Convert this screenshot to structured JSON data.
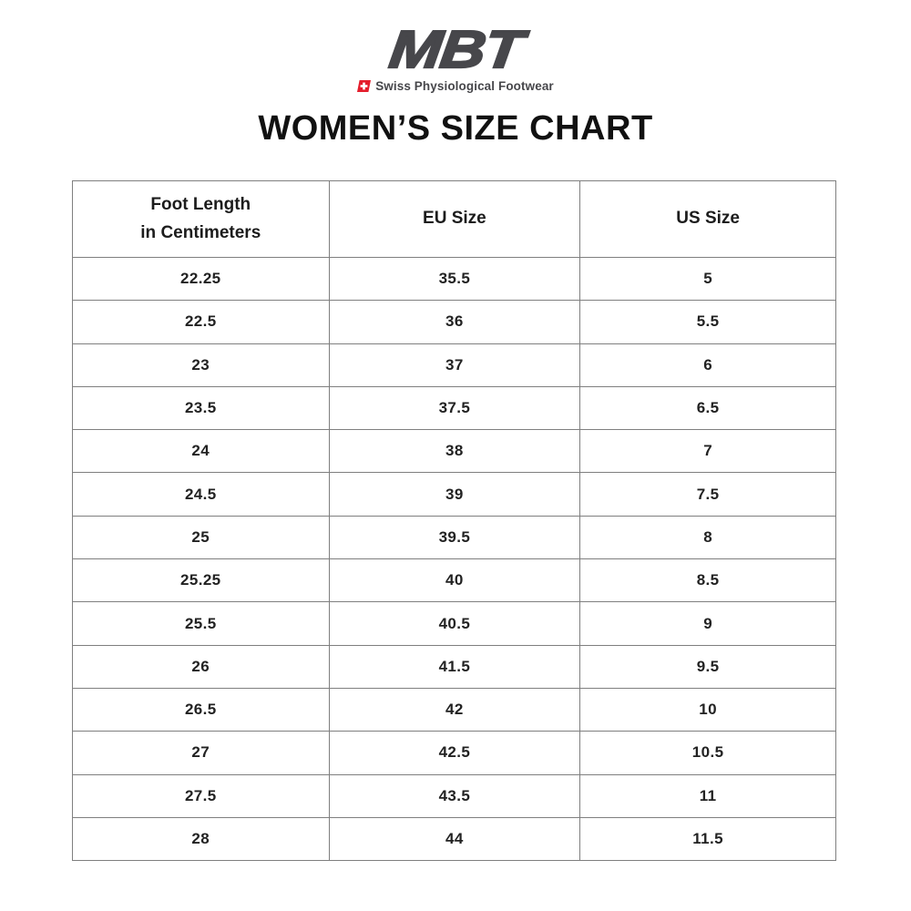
{
  "logo": {
    "brand": "MBT",
    "tagline": "Swiss Physiological Footwear"
  },
  "title": "WOMEN’S SIZE CHART",
  "colors": {
    "brand_gray": "#47474b",
    "swiss_red": "#e41e2d",
    "table_border": "#7f7f7f"
  },
  "table": {
    "columns": [
      {
        "label_lines": [
          "Foot Length",
          "in Centimeters"
        ]
      },
      {
        "label_lines": [
          "EU Size"
        ]
      },
      {
        "label_lines": [
          "US Size"
        ]
      }
    ],
    "column_keys": [
      "foot-length-cm",
      "eu-size",
      "us-size"
    ],
    "rows": [
      [
        "22.25",
        "35.5",
        "5"
      ],
      [
        "22.5",
        "36",
        "5.5"
      ],
      [
        "23",
        "37",
        "6"
      ],
      [
        "23.5",
        "37.5",
        "6.5"
      ],
      [
        "24",
        "38",
        "7"
      ],
      [
        "24.5",
        "39",
        "7.5"
      ],
      [
        "25",
        "39.5",
        "8"
      ],
      [
        "25.25",
        "40",
        "8.5"
      ],
      [
        "25.5",
        "40.5",
        "9"
      ],
      [
        "26",
        "41.5",
        "9.5"
      ],
      [
        "26.5",
        "42",
        "10"
      ],
      [
        "27",
        "42.5",
        "10.5"
      ],
      [
        "27.5",
        "43.5",
        "11"
      ],
      [
        "28",
        "44",
        "11.5"
      ]
    ]
  }
}
